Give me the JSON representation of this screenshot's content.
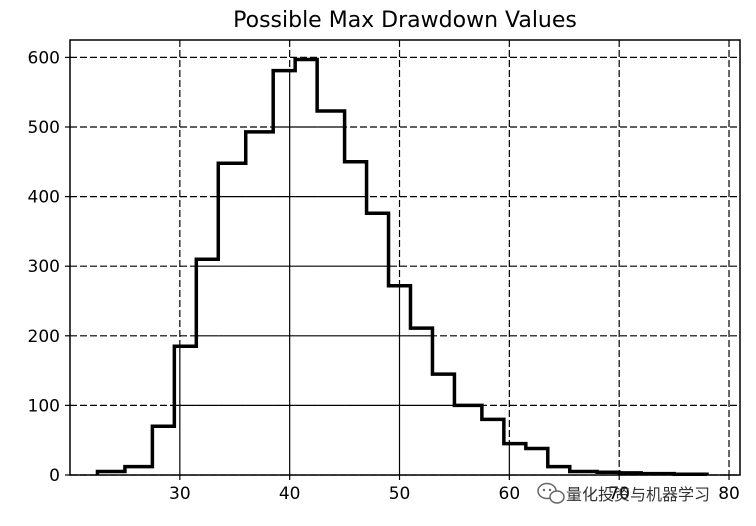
{
  "chart_data": {
    "type": "bar",
    "histtype": "step",
    "title": "Possible Max Drawdown Values",
    "xlabel": "",
    "ylabel": "",
    "xlim": [
      20,
      81
    ],
    "ylim": [
      0,
      625
    ],
    "x_ticks": [
      30,
      40,
      50,
      60,
      70,
      80
    ],
    "y_ticks": [
      0,
      100,
      200,
      300,
      400,
      500,
      600
    ],
    "grid": true,
    "grid_style": "dashed",
    "bin_edges": [
      22.5,
      25.0,
      27.5,
      29.5,
      31.5,
      33.5,
      36.0,
      38.5,
      40.5,
      42.5,
      45.0,
      47.0,
      49.0,
      51.0,
      53.0,
      55.0,
      57.5,
      59.5,
      61.5,
      63.5,
      65.5,
      68.0,
      70.0,
      72.0,
      75.0,
      78.0
    ],
    "values": [
      5,
      12,
      70,
      185,
      310,
      448,
      493,
      581,
      597,
      523,
      450,
      376,
      272,
      211,
      145,
      100,
      80,
      45,
      38,
      12,
      5,
      4,
      3,
      2,
      1
    ],
    "color": "#000000"
  },
  "watermark": {
    "text": "量化投资与机器学习",
    "icon": "wechat-icon"
  }
}
